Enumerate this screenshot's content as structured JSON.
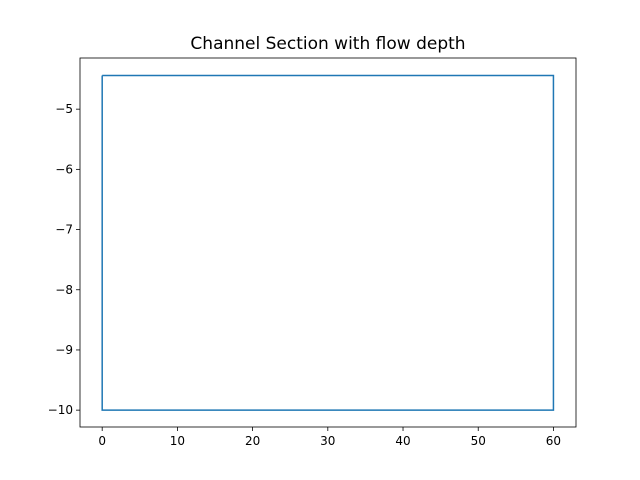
{
  "chart_data": {
    "type": "line",
    "title": "Channel Section with flow depth",
    "xlabel": "",
    "ylabel": "",
    "xlim": [
      -2.95,
      63
    ],
    "ylim": [
      -10.28,
      -4.15
    ],
    "xticks": [
      0,
      10,
      20,
      30,
      40,
      50,
      60
    ],
    "yticks": [
      -10,
      -9,
      -8,
      -7,
      -6,
      -5
    ],
    "grid": false,
    "series": [
      {
        "x": [
          0,
          0,
          60,
          60,
          0
        ],
        "y": [
          -4.44,
          -10,
          -10,
          -4.44,
          -4.44
        ],
        "color": "#1f77b4"
      }
    ]
  }
}
